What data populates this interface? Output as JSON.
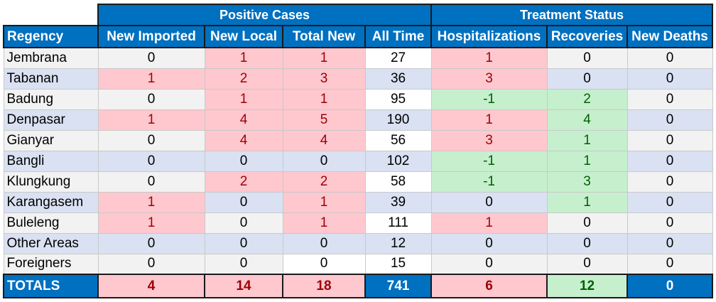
{
  "groups": {
    "positive": "Positive Cases",
    "treatment": "Treatment Status"
  },
  "headers": [
    "Regency",
    "New Imported",
    "New Local",
    "Total New",
    "All Time",
    "Hospitalizations",
    "Recoveries",
    "New Deaths"
  ],
  "rows": [
    {
      "name": "Jembrana",
      "values": [
        "0",
        "1",
        "1",
        "27",
        "1",
        "0",
        "0"
      ],
      "styles": [
        "",
        "p",
        "p",
        "w",
        "p",
        "",
        ""
      ]
    },
    {
      "name": "Tabanan",
      "values": [
        "1",
        "2",
        "3",
        "36",
        "3",
        "0",
        "0"
      ],
      "styles": [
        "p",
        "p",
        "p",
        "",
        "p",
        "",
        ""
      ]
    },
    {
      "name": "Badung",
      "values": [
        "0",
        "1",
        "1",
        "95",
        "-1",
        "2",
        "0"
      ],
      "styles": [
        "",
        "p",
        "p",
        "w",
        "g",
        "g",
        ""
      ]
    },
    {
      "name": "Denpasar",
      "values": [
        "1",
        "4",
        "5",
        "190",
        "1",
        "4",
        "0"
      ],
      "styles": [
        "p",
        "p",
        "p",
        "",
        "p",
        "g",
        ""
      ]
    },
    {
      "name": "Gianyar",
      "values": [
        "0",
        "4",
        "4",
        "56",
        "3",
        "1",
        "0"
      ],
      "styles": [
        "",
        "p",
        "p",
        "w",
        "p",
        "g",
        ""
      ]
    },
    {
      "name": "Bangli",
      "values": [
        "0",
        "0",
        "0",
        "102",
        "-1",
        "1",
        "0"
      ],
      "styles": [
        "",
        "",
        "",
        "",
        "g",
        "g",
        ""
      ]
    },
    {
      "name": "Klungkung",
      "values": [
        "0",
        "2",
        "2",
        "58",
        "-1",
        "3",
        "0"
      ],
      "styles": [
        "",
        "p",
        "p",
        "w",
        "g",
        "g",
        ""
      ]
    },
    {
      "name": "Karangasem",
      "values": [
        "1",
        "0",
        "1",
        "39",
        "0",
        "1",
        "0"
      ],
      "styles": [
        "p",
        "",
        "p",
        "",
        "",
        "g",
        ""
      ]
    },
    {
      "name": "Buleleng",
      "values": [
        "1",
        "0",
        "1",
        "111",
        "1",
        "0",
        "0"
      ],
      "styles": [
        "p",
        "",
        "p",
        "w",
        "p",
        "",
        ""
      ]
    },
    {
      "name": "Other Areas",
      "values": [
        "0",
        "0",
        "0",
        "12",
        "0",
        "0",
        "0"
      ],
      "styles": [
        "",
        "",
        "",
        "",
        "",
        "",
        ""
      ]
    },
    {
      "name": "Foreigners",
      "values": [
        "0",
        "0",
        "0",
        "15",
        "0",
        "0",
        "0"
      ],
      "styles": [
        "",
        "",
        "w",
        "w",
        "",
        "",
        ""
      ]
    }
  ],
  "totals": {
    "label": "TOTALS",
    "values": [
      "4",
      "14",
      "18",
      "741",
      "6",
      "12",
      "0"
    ],
    "styles": [
      "p",
      "p",
      "p",
      "",
      "p",
      "g",
      ""
    ]
  },
  "colors": {
    "header_blue": "#0070c0",
    "pink_fill": "#ffc7ce",
    "pink_text": "#9c0006",
    "green_fill": "#c6efce",
    "green_text": "#006100"
  }
}
